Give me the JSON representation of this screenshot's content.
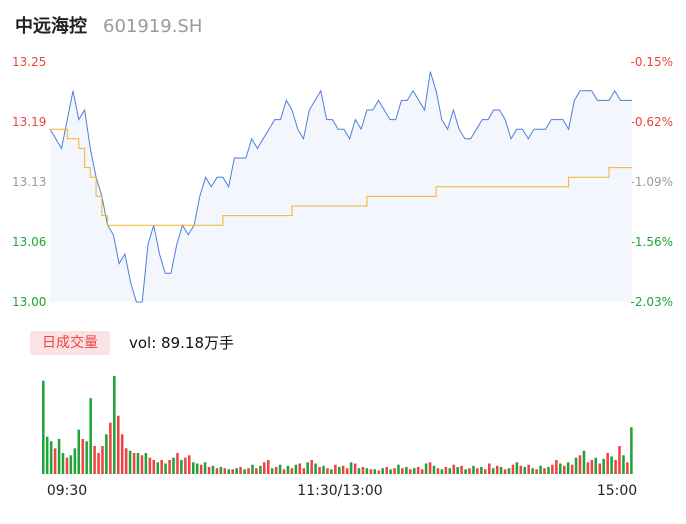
{
  "header": {
    "name": "中远海控",
    "code": "601919.SH"
  },
  "volume_panel": {
    "tag": "日成交量",
    "vol_text": "vol: 89.18万手"
  },
  "colors": {
    "price_line": "#4c7fdc",
    "avg_line": "#f5b32a",
    "area_fill": "#f3f6fc",
    "up": "#f04242",
    "down": "#1fa33a",
    "left_axis": "#e8453c",
    "axis_text_gray": "#999999"
  },
  "chart_data": [
    {
      "type": "line",
      "title": "",
      "y_left_ticks": [
        "13.25",
        "13.19",
        "13.13",
        "13.06",
        "13.00"
      ],
      "y_right_ticks": [
        "-0.15%",
        "-0.62%",
        "-1.09%",
        "-1.56%",
        "-2.03%"
      ],
      "y_left_colors": [
        "#e8453c",
        "#e8453c",
        "#999999",
        "#1fa33a",
        "#1fa33a"
      ],
      "y_right_colors": [
        "#e8453c",
        "#e8453c",
        "#999999",
        "#1fa33a",
        "#1fa33a"
      ],
      "ylim": [
        13.0,
        13.25
      ],
      "x_labels": [
        "09:30",
        "11:30/13:00",
        "15:00"
      ],
      "series": [
        {
          "values": [
            13.18,
            13.17,
            13.16,
            13.19,
            13.22,
            13.19,
            13.2,
            13.16,
            13.13,
            13.11,
            13.08,
            13.07,
            13.04,
            13.05,
            13.02,
            13.0,
            13.0,
            13.06,
            13.08,
            13.05,
            13.03,
            13.03,
            13.06,
            13.08,
            13.07,
            13.08,
            13.11,
            13.13,
            13.12,
            13.13,
            13.13,
            13.12,
            13.15,
            13.15,
            13.15,
            13.17,
            13.16,
            13.17,
            13.18,
            13.19,
            13.19,
            13.21,
            13.2,
            13.18,
            13.17,
            13.2,
            13.21,
            13.22,
            13.19,
            13.19,
            13.18,
            13.18,
            13.17,
            13.19,
            13.18,
            13.2,
            13.2,
            13.21,
            13.2,
            13.19,
            13.19,
            13.21,
            13.21,
            13.22,
            13.21,
            13.2,
            13.24,
            13.22,
            13.19,
            13.18,
            13.2,
            13.18,
            13.17,
            13.17,
            13.18,
            13.19,
            13.19,
            13.2,
            13.2,
            13.19,
            13.17,
            13.18,
            13.18,
            13.17,
            13.18,
            13.18,
            13.18,
            13.19,
            13.19,
            13.19,
            13.18,
            13.21,
            13.22,
            13.22,
            13.22,
            13.21,
            13.21,
            13.21,
            13.22,
            13.21,
            13.21,
            13.21
          ]
        },
        {
          "values": [
            13.18,
            13.18,
            13.18,
            13.17,
            13.17,
            13.16,
            13.14,
            13.13,
            13.11,
            13.09,
            13.08,
            13.08,
            13.08,
            13.08,
            13.08,
            13.08,
            13.08,
            13.08,
            13.08,
            13.08,
            13.08,
            13.08,
            13.08,
            13.08,
            13.08,
            13.08,
            13.08,
            13.08,
            13.08,
            13.08,
            13.09,
            13.09,
            13.09,
            13.09,
            13.09,
            13.09,
            13.09,
            13.09,
            13.09,
            13.09,
            13.09,
            13.09,
            13.1,
            13.1,
            13.1,
            13.1,
            13.1,
            13.1,
            13.1,
            13.1,
            13.1,
            13.1,
            13.1,
            13.1,
            13.1,
            13.11,
            13.11,
            13.11,
            13.11,
            13.11,
            13.11,
            13.11,
            13.11,
            13.11,
            13.11,
            13.11,
            13.11,
            13.12,
            13.12,
            13.12,
            13.12,
            13.12,
            13.12,
            13.12,
            13.12,
            13.12,
            13.12,
            13.12,
            13.12,
            13.12,
            13.12,
            13.12,
            13.12,
            13.12,
            13.12,
            13.12,
            13.12,
            13.12,
            13.12,
            13.12,
            13.13,
            13.13,
            13.13,
            13.13,
            13.13,
            13.13,
            13.13,
            13.14,
            13.14,
            13.14,
            13.14,
            13.14
          ]
        }
      ]
    },
    {
      "type": "bar",
      "title": "",
      "values": [
        80,
        32,
        28,
        22,
        30,
        18,
        14,
        16,
        22,
        38,
        30,
        28,
        65,
        24,
        18,
        24,
        34,
        44,
        84,
        50,
        34,
        22,
        20,
        18,
        18,
        16,
        18,
        14,
        12,
        10,
        12,
        9,
        12,
        14,
        18,
        12,
        14,
        16,
        10,
        9,
        8,
        10,
        6,
        7,
        5,
        6,
        5,
        4,
        4,
        5,
        6,
        4,
        5,
        8,
        5,
        7,
        10,
        12,
        5,
        6,
        8,
        4,
        7,
        5,
        8,
        9,
        5,
        10,
        12,
        9,
        6,
        7,
        5,
        4,
        8,
        6,
        7,
        5,
        10,
        9,
        5,
        6,
        5,
        4,
        4,
        3,
        5,
        6,
        4,
        5,
        8,
        5,
        6,
        4,
        5,
        6,
        4,
        9,
        10,
        7,
        5,
        4,
        6,
        5,
        8,
        6,
        7,
        4,
        5,
        7,
        5,
        6,
        4,
        9,
        5,
        7,
        6,
        4,
        5,
        8,
        10,
        7,
        6,
        8,
        5,
        4,
        7,
        5,
        6,
        8,
        12,
        9,
        7,
        10,
        8,
        14,
        16,
        20,
        10,
        12,
        14,
        9,
        13,
        18,
        15,
        12,
        24,
        16,
        10,
        40
      ],
      "colors": [
        "down",
        "down",
        "down",
        "up",
        "down",
        "down",
        "up",
        "down",
        "down",
        "down",
        "up",
        "down",
        "down",
        "up",
        "up",
        "up",
        "down",
        "up",
        "down",
        "up",
        "up",
        "up",
        "down",
        "up",
        "down",
        "up",
        "down",
        "up",
        "up",
        "down",
        "up",
        "down",
        "up",
        "down",
        "up",
        "down",
        "up",
        "up",
        "down",
        "down",
        "up",
        "down",
        "up",
        "down",
        "up",
        "down",
        "up",
        "down",
        "up",
        "down",
        "up",
        "down",
        "up",
        "down",
        "up",
        "down",
        "up",
        "up",
        "down",
        "up",
        "down",
        "up",
        "down",
        "up",
        "down",
        "up",
        "up",
        "down",
        "up",
        "down",
        "up",
        "down",
        "up",
        "down",
        "up",
        "down",
        "up",
        "up",
        "down",
        "up",
        "down",
        "up",
        "down",
        "up",
        "down",
        "up",
        "down",
        "up",
        "down",
        "up",
        "down",
        "up",
        "down",
        "up",
        "down",
        "up",
        "up",
        "down",
        "up",
        "down",
        "up",
        "down",
        "up",
        "down",
        "up",
        "down",
        "up",
        "down",
        "up",
        "down",
        "up",
        "down",
        "up",
        "up",
        "down",
        "up",
        "down",
        "up",
        "down",
        "up",
        "down",
        "up",
        "down",
        "up",
        "down",
        "up",
        "down",
        "up",
        "down",
        "up",
        "up",
        "down",
        "up",
        "down",
        "up",
        "down",
        "up",
        "down",
        "up",
        "up",
        "down",
        "up",
        "down",
        "up",
        "down",
        "up",
        "up",
        "down",
        "up",
        "down"
      ]
    }
  ]
}
